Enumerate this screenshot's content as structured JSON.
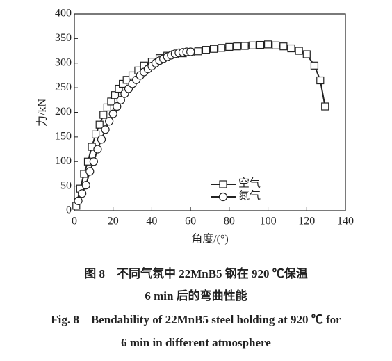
{
  "chart_data": {
    "type": "line",
    "x_label": "角度/(°)",
    "y_label": "力/kN",
    "xlim": [
      0,
      140
    ],
    "xticks": [
      0,
      20,
      40,
      60,
      80,
      100,
      120,
      140
    ],
    "ylim": [
      0,
      400
    ],
    "yticks": [
      0,
      50,
      100,
      150,
      200,
      250,
      300,
      350,
      400
    ],
    "legend": "lower right",
    "series": [
      {
        "name": "空气",
        "color": "#222222",
        "marker": "square",
        "x": [
          1,
          3,
          5,
          7,
          9,
          11,
          13,
          15,
          17,
          19,
          21,
          23,
          25,
          27,
          30,
          33,
          36,
          40,
          44,
          48,
          52,
          56,
          60,
          64,
          68,
          72,
          76,
          80,
          84,
          88,
          92,
          96,
          100,
          104,
          108,
          112,
          116,
          120,
          124,
          127,
          129.5
        ],
        "values": [
          10,
          45,
          75,
          100,
          130,
          155,
          175,
          195,
          210,
          222,
          235,
          248,
          258,
          266,
          275,
          285,
          295,
          303,
          310,
          315,
          318,
          320,
          322,
          324,
          327,
          329,
          331,
          333,
          334,
          335,
          336,
          337,
          338,
          336,
          334,
          330,
          325,
          318,
          295,
          265,
          212
        ]
      },
      {
        "name": "氮气",
        "color": "#222222",
        "marker": "circle",
        "x": [
          2,
          4,
          6,
          8,
          10,
          12,
          14,
          16,
          18,
          20,
          22,
          24,
          26,
          28,
          30,
          32,
          34,
          36,
          38,
          40,
          42,
          44,
          46,
          48,
          50,
          52,
          54,
          56,
          58,
          60
        ],
        "values": [
          20,
          35,
          52,
          80,
          100,
          125,
          145,
          165,
          182,
          197,
          212,
          225,
          238,
          248,
          258,
          266,
          275,
          282,
          288,
          294,
          300,
          305,
          309,
          313,
          316,
          319,
          321,
          322,
          323,
          323
        ]
      }
    ],
    "caption": [
      "图 8　不同气氛中 22MnB5 钢在 920 ℃保温",
      "6 min 后的弯曲性能",
      "Fig. 8　Bendability of 22MnB5 steel holding at 920 ℃ for",
      "6 min in different atmosphere"
    ]
  }
}
